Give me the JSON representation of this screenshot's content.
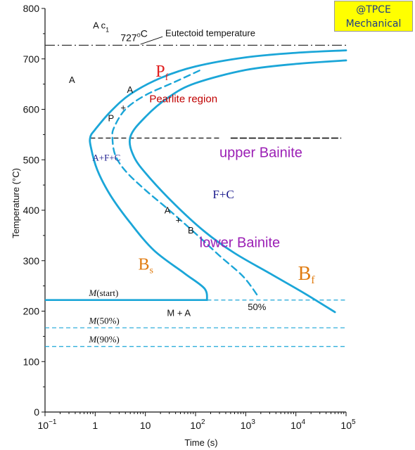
{
  "chart_data": {
    "type": "line",
    "x_scale": "log",
    "xlabel": "Time (s)",
    "ylabel": "Temperature (°C)",
    "xlim": [
      0.1,
      100000
    ],
    "ylim": [
      0,
      800
    ],
    "x_ticks": [
      {
        "value": 0.1,
        "base": "10",
        "exp": "−1"
      },
      {
        "value": 1,
        "base": "1",
        "exp": ""
      },
      {
        "value": 10,
        "base": "10",
        "exp": ""
      },
      {
        "value": 100,
        "base": "10",
        "exp": "2"
      },
      {
        "value": 1000,
        "base": "10",
        "exp": "3"
      },
      {
        "value": 10000,
        "base": "10",
        "exp": "4"
      },
      {
        "value": 100000,
        "base": "10",
        "exp": "5"
      }
    ],
    "y_ticks": [
      0,
      100,
      200,
      300,
      400,
      500,
      600,
      700,
      800
    ],
    "series": [
      {
        "key": "start",
        "style": "solid",
        "points": [
          [
            100000,
            717
          ],
          [
            10000,
            712
          ],
          [
            1000,
            703
          ],
          [
            100,
            685
          ],
          [
            20,
            662
          ],
          [
            5,
            630
          ],
          [
            2,
            595
          ],
          [
            1,
            560
          ],
          [
            0.8,
            545
          ],
          [
            0.82,
            525
          ],
          [
            1.1,
            480
          ],
          [
            2,
            430
          ],
          [
            5,
            375
          ],
          [
            15,
            320
          ],
          [
            60,
            275
          ],
          [
            150,
            245
          ],
          [
            170,
            222
          ]
        ]
      },
      {
        "key": "fifty",
        "style": "dashed",
        "points": [
          [
            120,
            677
          ],
          [
            40,
            655
          ],
          [
            10,
            628
          ],
          [
            4,
            600
          ],
          [
            2.4,
            565
          ],
          [
            2.2,
            545
          ],
          [
            2.5,
            510
          ],
          [
            4,
            478
          ],
          [
            10,
            440
          ],
          [
            30,
            400
          ],
          [
            90,
            358
          ],
          [
            300,
            310
          ],
          [
            900,
            268
          ],
          [
            1800,
            228
          ]
        ]
      },
      {
        "key": "finish",
        "style": "solid",
        "points": [
          [
            100000,
            697
          ],
          [
            10000,
            690
          ],
          [
            1000,
            678
          ],
          [
            100,
            652
          ],
          [
            30,
            625
          ],
          [
            10,
            585
          ],
          [
            5,
            545
          ],
          [
            6,
            505
          ],
          [
            12,
            465
          ],
          [
            40,
            410
          ],
          [
            150,
            358
          ],
          [
            600,
            315
          ],
          [
            3000,
            275
          ],
          [
            15000,
            235
          ],
          [
            60000,
            198
          ]
        ]
      }
    ],
    "reference_lines": [
      {
        "key": "eutectoid",
        "y": 727,
        "style": "dashdot",
        "color": "#333333"
      },
      {
        "key": "bainite_boundary",
        "y": 543,
        "style": "dashed",
        "color": "#111111"
      },
      {
        "key": "m_start",
        "y": 222,
        "style": "solid-then-dashed",
        "split_x": 170,
        "color": "#1ba6d8"
      },
      {
        "key": "m_50",
        "y": 167,
        "style": "dashed",
        "color": "#1ba6d8"
      },
      {
        "key": "m_90",
        "y": 130,
        "style": "dashed",
        "color": "#1ba6d8"
      }
    ],
    "annotations": [
      {
        "key": "ac1",
        "x": 0.9,
        "y": 760,
        "parts": [
          {
            "t": "A c"
          },
          {
            "t": "1",
            "sub": true
          }
        ],
        "color": "#111",
        "size": 13,
        "font": "sans"
      },
      {
        "key": "t727",
        "x": 3.2,
        "y": 735,
        "parts": [
          {
            "t": "727"
          },
          {
            "t": "o",
            "sup": true
          },
          {
            "t": "C"
          }
        ],
        "color": "#111",
        "size": 14,
        "font": "sans"
      },
      {
        "key": "eutectoid_label",
        "x": 25,
        "y": 745,
        "parts": [
          {
            "t": "Eutectoid temperature"
          }
        ],
        "color": "#111",
        "size": 13,
        "font": "sans"
      },
      {
        "key": "a_region",
        "x": 0.3,
        "y": 652,
        "parts": [
          {
            "t": "A"
          }
        ],
        "color": "#111",
        "size": 13,
        "font": "sans"
      },
      {
        "key": "pf",
        "x": 16,
        "y": 665,
        "parts": [
          {
            "t": "P",
            "size": 24
          },
          {
            "t": "f",
            "sub": true,
            "size": 14
          }
        ],
        "color": "#e02020",
        "size": 24,
        "font": "serif"
      },
      {
        "key": "pearlite",
        "x": 12,
        "y": 614,
        "parts": [
          {
            "t": "Pearlite region"
          }
        ],
        "color": "#c00000",
        "size": 15,
        "font": "sans"
      },
      {
        "key": "a_upper",
        "x": 4.3,
        "y": 633,
        "parts": [
          {
            "t": "A"
          }
        ],
        "color": "#111",
        "size": 13,
        "font": "sans"
      },
      {
        "key": "plus_upper",
        "x": 3.2,
        "y": 597,
        "parts": [
          {
            "t": "+"
          }
        ],
        "color": "#111",
        "size": 13,
        "font": "sans"
      },
      {
        "key": "p_upper",
        "x": 1.8,
        "y": 576,
        "parts": [
          {
            "t": "P"
          }
        ],
        "color": "#111",
        "size": 13,
        "font": "sans"
      },
      {
        "key": "upper_bainite",
        "x": 300,
        "y": 505,
        "parts": [
          {
            "t": "upper Bainite"
          }
        ],
        "color": "#9b1fb5",
        "size": 20,
        "font": "sans"
      },
      {
        "key": "afc",
        "x": 0.88,
        "y": 498,
        "parts": [
          {
            "t": "A+F+C"
          }
        ],
        "color": "#1a1a8c",
        "size": 13,
        "font": "serif"
      },
      {
        "key": "fc",
        "x": 220,
        "y": 424,
        "parts": [
          {
            "t": "F+C"
          }
        ],
        "color": "#1a1a8c",
        "size": 17,
        "font": "serif"
      },
      {
        "key": "a_mid",
        "x": 24,
        "y": 394,
        "parts": [
          {
            "t": "A"
          }
        ],
        "color": "#111",
        "size": 13,
        "font": "sans"
      },
      {
        "key": "plus_mid",
        "x": 40,
        "y": 374,
        "parts": [
          {
            "t": "+"
          }
        ],
        "color": "#111",
        "size": 13,
        "font": "sans"
      },
      {
        "key": "b_mid",
        "x": 70,
        "y": 354,
        "parts": [
          {
            "t": "B"
          }
        ],
        "color": "#111",
        "size": 13,
        "font": "sans"
      },
      {
        "key": "lower_bainite",
        "x": 120,
        "y": 327,
        "parts": [
          {
            "t": "lower Bainite"
          }
        ],
        "color": "#9b1fb5",
        "size": 20,
        "font": "sans"
      },
      {
        "key": "bs",
        "x": 7.2,
        "y": 282,
        "parts": [
          {
            "t": "B",
            "size": 24
          },
          {
            "t": "s",
            "sub": true,
            "size": 14
          }
        ],
        "color": "#e07b10",
        "size": 24,
        "font": "serif"
      },
      {
        "key": "bf",
        "x": 11000,
        "y": 262,
        "parts": [
          {
            "t": "B",
            "size": 28
          },
          {
            "t": "f",
            "sub": true,
            "size": 16
          }
        ],
        "color": "#e07b10",
        "size": 28,
        "font": "serif"
      },
      {
        "key": "mstart",
        "x": 0.75,
        "y": 230,
        "parts": [
          {
            "t": "M",
            "italic": true
          },
          {
            "t": "(start)"
          }
        ],
        "color": "#111",
        "size": 13,
        "font": "serif"
      },
      {
        "key": "fifty_pct",
        "x": 1100,
        "y": 202,
        "parts": [
          {
            "t": "50%"
          }
        ],
        "color": "#111",
        "size": 13,
        "font": "sans"
      },
      {
        "key": "ma",
        "x": 27,
        "y": 190,
        "parts": [
          {
            "t": "M + A"
          }
        ],
        "color": "#111",
        "size": 13,
        "font": "sans"
      },
      {
        "key": "m50",
        "x": 0.75,
        "y": 175,
        "parts": [
          {
            "t": "M",
            "italic": true
          },
          {
            "t": "(50%)"
          }
        ],
        "color": "#111",
        "size": 13,
        "font": "serif"
      },
      {
        "key": "m90",
        "x": 0.75,
        "y": 138,
        "parts": [
          {
            "t": "M",
            "italic": true
          },
          {
            "t": "(90%)"
          }
        ],
        "color": "#111",
        "size": 13,
        "font": "serif"
      }
    ],
    "colors": {
      "curve": "#1ba6d8",
      "axis": "#111111"
    }
  },
  "badge": {
    "line1": "@TPCE",
    "line2": "Mechanical"
  }
}
